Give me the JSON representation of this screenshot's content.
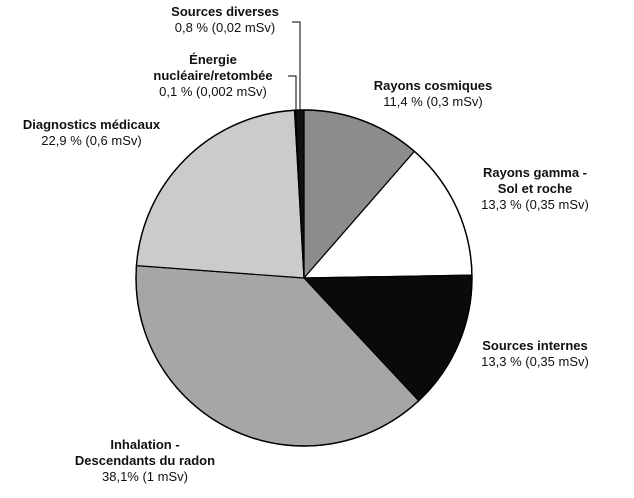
{
  "chart_data": {
    "type": "pie",
    "title": "",
    "slices": [
      {
        "label_lines": [
          "Rayons cosmiques"
        ],
        "value_text": "11,4 %  (0,3 mSv)",
        "percent": 11.4,
        "dose_msv": 0.3,
        "color": "#8c8c8c"
      },
      {
        "label_lines": [
          "Rayons gamma -",
          "Sol et roche"
        ],
        "value_text": "13,3  %  (0,35 mSv)",
        "percent": 13.3,
        "dose_msv": 0.35,
        "color": "#ffffff"
      },
      {
        "label_lines": [
          "Sources internes"
        ],
        "value_text": "13,3 %  (0,35 mSv)",
        "percent": 13.3,
        "dose_msv": 0.35,
        "color": "#0a0a0a"
      },
      {
        "label_lines": [
          "Inhalation -",
          "Descendants du radon"
        ],
        "value_text": "38,1%  (1 mSv)",
        "percent": 38.1,
        "dose_msv": 1,
        "color": "#a6a6a6"
      },
      {
        "label_lines": [
          "Diagnostics médicaux"
        ],
        "value_text": "22,9 %  (0,6 mSv)",
        "percent": 22.9,
        "dose_msv": 0.6,
        "color": "#cbcbcb"
      },
      {
        "label_lines": [
          "Énergie",
          "nucléaire/retombée"
        ],
        "value_text": "0,1 %  (0,002 mSv)",
        "percent": 0.1,
        "dose_msv": 0.002,
        "color": "#333333"
      },
      {
        "label_lines": [
          "Sources diverses"
        ],
        "value_text": "0,8 %  (0,02 mSv)",
        "percent": 0.8,
        "dose_msv": 0.02,
        "color": "#111111"
      }
    ]
  }
}
